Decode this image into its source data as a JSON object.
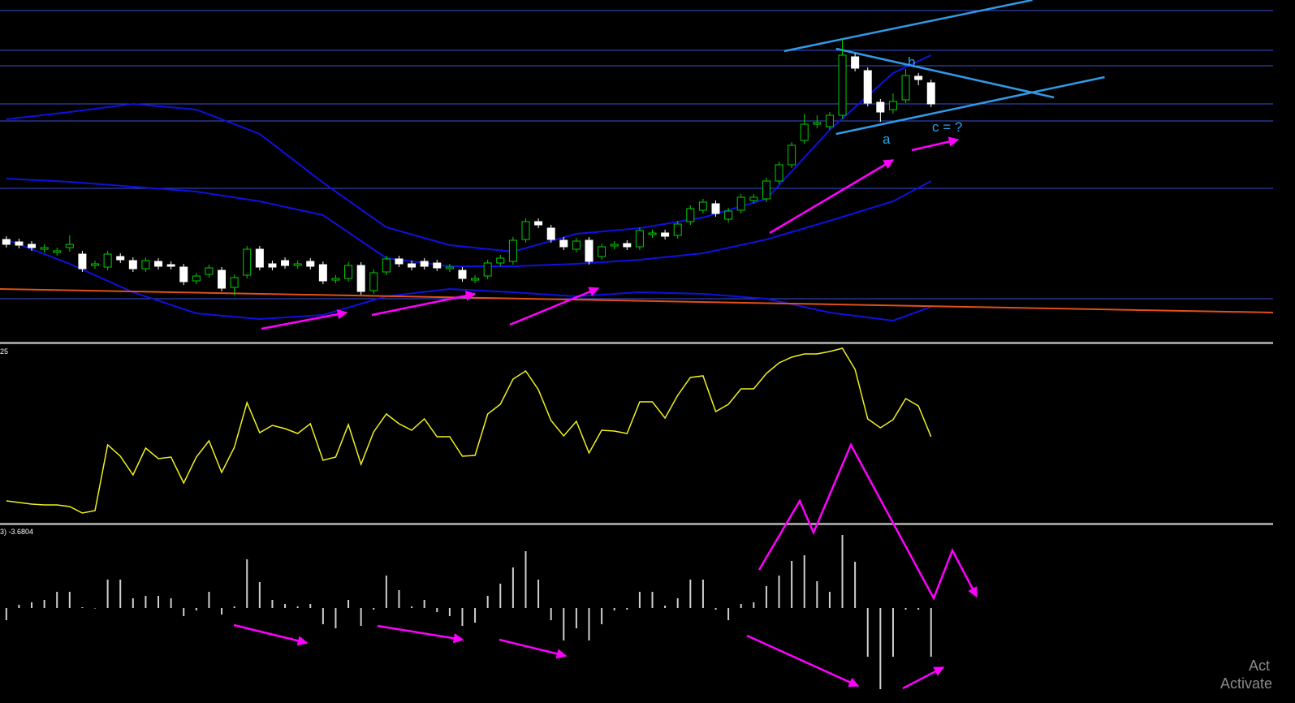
{
  "chart_data": [
    {
      "type": "candlestick",
      "xlim": [
        -0.5,
        100
      ],
      "ylim": [
        0,
        420
      ],
      "up_color": "#00d000",
      "down_color": "#ffffff",
      "open": [
        125,
        122,
        119,
        113,
        109,
        115,
        107,
        93,
        91,
        104,
        99,
        89,
        98,
        94,
        91,
        74,
        82,
        87,
        66,
        81,
        113,
        95,
        99,
        93,
        98,
        94,
        75,
        77,
        93,
        62,
        85,
        101,
        95,
        98,
        96,
        89,
        87,
        75,
        80,
        96,
        98,
        125,
        147,
        139,
        124,
        113,
        124,
        104,
        117,
        120,
        116,
        131,
        133,
        130,
        147,
        161,
        169,
        150,
        161,
        173,
        175,
        197,
        217,
        247,
        267,
        264,
        278,
        350,
        333,
        294,
        285,
        297,
        326,
        318
      ],
      "high": [
        129,
        126,
        123,
        119,
        115,
        130,
        111,
        99,
        111,
        108,
        103,
        103,
        102,
        98,
        95,
        84,
        94,
        91,
        82,
        117,
        117,
        99,
        103,
        99,
        102,
        98,
        81,
        97,
        97,
        88,
        105,
        105,
        99,
        102,
        100,
        95,
        91,
        81,
        100,
        106,
        128,
        151,
        151,
        143,
        128,
        127,
        128,
        120,
        123,
        124,
        140,
        137,
        137,
        148,
        167,
        175,
        173,
        164,
        181,
        181,
        201,
        221,
        245,
        280,
        278,
        282,
        372,
        354,
        337,
        298,
        305,
        335,
        330,
        322
      ],
      "low": [
        115,
        114,
        111,
        109,
        105,
        110,
        85,
        89,
        87,
        96,
        85,
        85,
        88,
        88,
        69,
        70,
        78,
        61,
        56,
        77,
        87,
        87,
        89,
        89,
        88,
        70,
        71,
        73,
        57,
        58,
        81,
        91,
        87,
        88,
        86,
        85,
        73,
        71,
        76,
        92,
        94,
        121,
        139,
        121,
        112,
        109,
        94,
        100,
        113,
        112,
        112,
        127,
        125,
        126,
        143,
        157,
        153,
        146,
        157,
        169,
        171,
        193,
        213,
        243,
        262,
        260,
        274,
        332,
        289,
        270,
        280,
        293,
        315,
        288
      ],
      "close": [
        119,
        118,
        115,
        115,
        111,
        119,
        89,
        95,
        107,
        100,
        89,
        99,
        92,
        92,
        73,
        80,
        90,
        65,
        78,
        113,
        91,
        91,
        93,
        95,
        92,
        74,
        77,
        93,
        61,
        84,
        101,
        95,
        91,
        92,
        90,
        91,
        77,
        77,
        96,
        102,
        124,
        147,
        143,
        125,
        116,
        123,
        98,
        116,
        119,
        116,
        136,
        133,
        129,
        144,
        163,
        171,
        157,
        160,
        177,
        177,
        197,
        217,
        241,
        267,
        269,
        278,
        352,
        336,
        293,
        282,
        295,
        327,
        322,
        292
      ],
      "hlines": [
        407,
        358,
        339,
        292,
        271,
        188,
        52
      ],
      "hline_color": "#3a4fd8",
      "series": [
        {
          "color": "#1010e0",
          "x": [
            0,
            5,
            10,
            15,
            20,
            25,
            30,
            35,
            40,
            45,
            50,
            55,
            60,
            65,
            70,
            73
          ],
          "values": [
            273,
            282,
            292,
            285,
            255,
            195,
            140,
            118,
            110,
            132,
            139,
            152,
            175,
            260,
            330,
            352
          ]
        },
        {
          "color": "#1010e0",
          "x": [
            0,
            5,
            10,
            15,
            20,
            25,
            30,
            35,
            40,
            45,
            50,
            55,
            60,
            65,
            70,
            73
          ],
          "values": [
            200,
            196,
            190,
            184,
            172,
            155,
            102,
            92,
            92,
            95,
            100,
            108,
            125,
            148,
            172,
            197
          ]
        },
        {
          "color": "#1010e0",
          "x": [
            0,
            5,
            10,
            15,
            20,
            25,
            30,
            35,
            40,
            45,
            50,
            55,
            60,
            65,
            70,
            73
          ],
          "values": [
            125,
            95,
            60,
            34,
            27,
            32,
            55,
            64,
            60,
            55,
            60,
            58,
            52,
            35,
            25,
            42
          ]
        },
        {
          "color": "#e0501a",
          "x": [
            -0.5,
            100
          ],
          "values": [
            64,
            35
          ]
        }
      ],
      "trend_lines": [
        {
          "x": [
            61.4,
            81
          ],
          "values": [
            357,
            420
          ]
        },
        {
          "x": [
            65.5,
            86.7
          ],
          "values": [
            255,
            325
          ]
        },
        {
          "x": [
            65.5,
            82.7
          ],
          "values": [
            360,
            300
          ]
        }
      ],
      "trend_color": "#2f9be8",
      "annotations": [
        "a",
        "b",
        "c = ?"
      ]
    },
    {
      "type": "line",
      "label": "25",
      "xlim": [
        -0.5,
        100
      ],
      "ylim": [
        0,
        220
      ],
      "color": "#f0f020",
      "values": [
        28,
        26,
        24,
        23,
        23,
        21,
        13,
        16,
        97,
        83,
        60,
        93,
        80,
        82,
        50,
        82,
        102,
        63,
        94,
        149,
        112,
        121,
        117,
        111,
        123,
        78,
        82,
        122,
        73,
        113,
        135,
        123,
        115,
        129,
        107,
        107,
        83,
        84,
        135,
        147,
        178,
        188,
        165,
        127,
        108,
        126,
        87,
        115,
        114,
        111,
        150,
        150,
        130,
        158,
        180,
        182,
        138,
        147,
        166,
        166,
        185,
        198,
        205,
        209,
        209,
        212,
        216,
        190,
        129,
        118,
        128,
        154,
        145,
        107
      ]
    },
    {
      "type": "bar",
      "label": "3) -3.6804",
      "xlim": [
        -0.5,
        100
      ],
      "ylim": [
        -117,
        101
      ],
      "color": "#cfcfcf",
      "values": [
        -15,
        4,
        7,
        10,
        20,
        20,
        1,
        0,
        35,
        35,
        12,
        15,
        15,
        12,
        -10,
        -3,
        20,
        -8,
        2,
        60,
        32,
        10,
        5,
        2,
        5,
        -20,
        -25,
        10,
        -22,
        -2,
        40,
        22,
        2,
        10,
        -5,
        -10,
        -22,
        -18,
        15,
        30,
        50,
        70,
        35,
        -15,
        -40,
        -25,
        -40,
        -20,
        -3,
        -2,
        20,
        20,
        3,
        12,
        35,
        35,
        -2,
        -15,
        5,
        7,
        27,
        40,
        58,
        65,
        33,
        20,
        90,
        57,
        -60,
        -100,
        -60,
        -2,
        -2,
        -60
      ]
    }
  ],
  "watermark": [
    "Act",
    "Activate"
  ]
}
